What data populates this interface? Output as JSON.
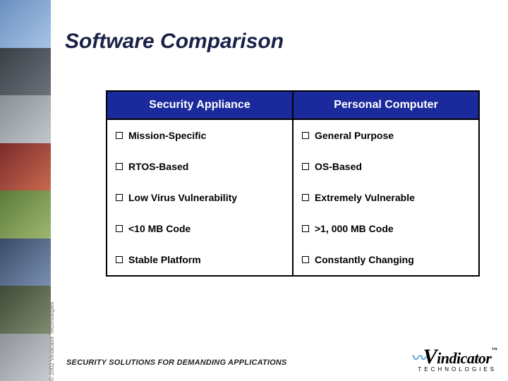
{
  "title": "Software Comparison",
  "table": {
    "headers": [
      "Security Appliance",
      "Personal Computer"
    ],
    "rows": [
      [
        "Mission-Specific",
        "General Purpose"
      ],
      [
        "RTOS-Based",
        "OS-Based"
      ],
      [
        "Low Virus Vulnerability",
        "Extremely Vulnerable"
      ],
      [
        "<10 MB Code",
        ">1, 000 MB Code"
      ],
      [
        "Stable Platform",
        "Constantly Changing"
      ]
    ],
    "header_bg": "#1a2a9c",
    "header_fg": "#ffffff",
    "border_color": "#000000",
    "cell_fontsize": 14,
    "header_fontsize": 16
  },
  "footer_tagline": "SECURITY SOLUTIONS FOR DEMANDING APPLICATIONS",
  "copyright": "© 2002 Vindicator Technologies",
  "logo": {
    "brand": "indicator",
    "big_v": "V",
    "sub": "TECHNOLOGIES",
    "tm": "™"
  },
  "colors": {
    "title": "#1a2146",
    "background": "#ffffff"
  }
}
